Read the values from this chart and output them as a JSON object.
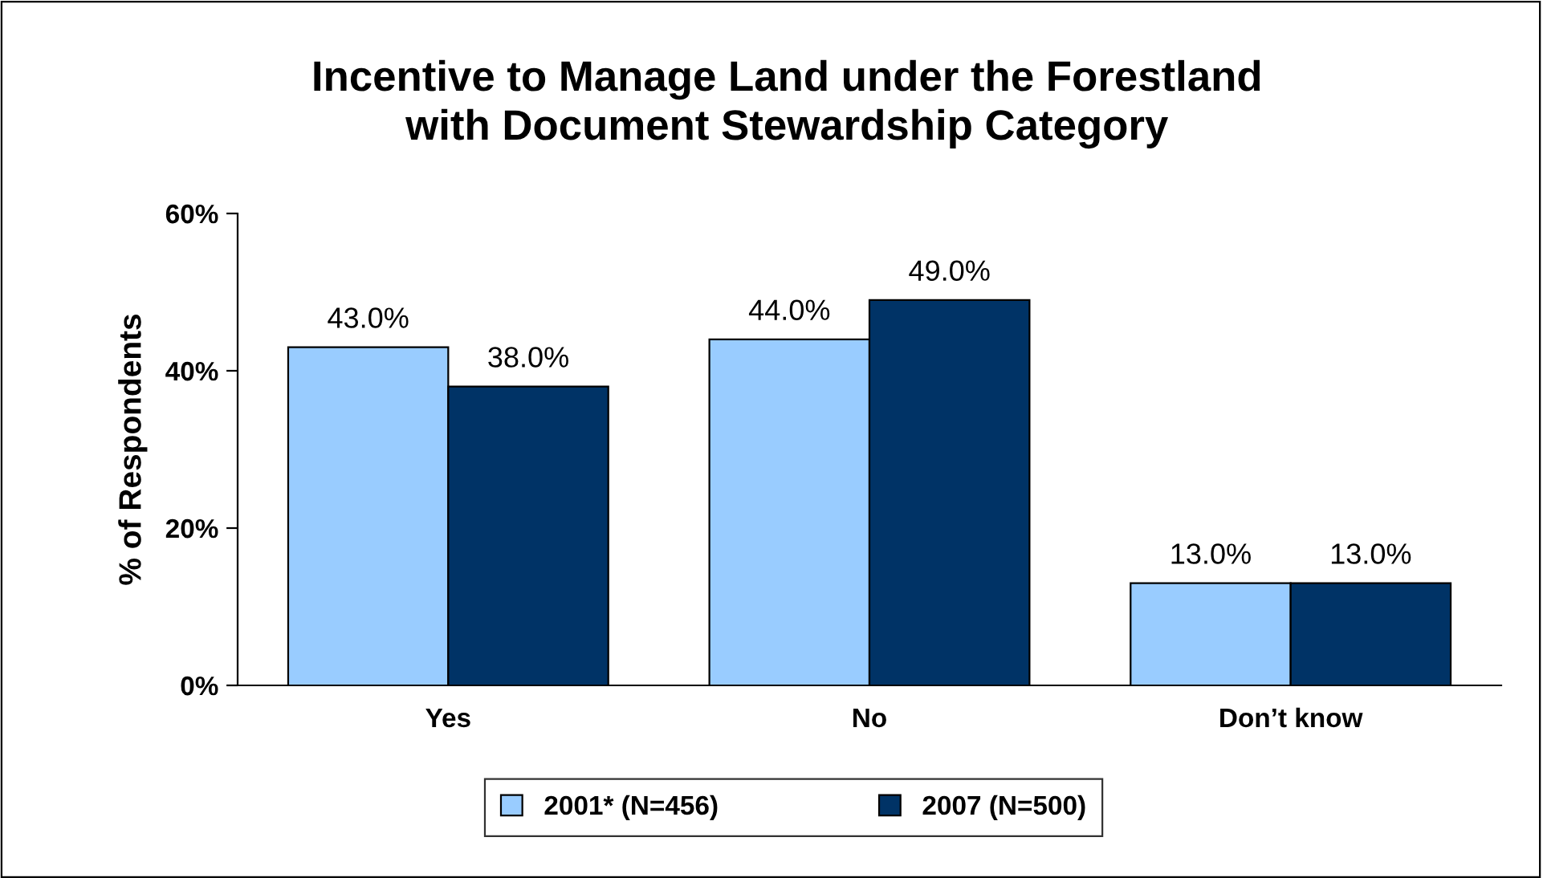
{
  "chart_data": {
    "type": "bar",
    "title": "Incentive to Manage Land under the Forestland\nwith Document Stewardship Category",
    "ylabel": "% of Respondents",
    "categories": [
      "Yes",
      "No",
      "Don’t know"
    ],
    "series": [
      {
        "name": "2001* (N=456)",
        "color": "#99ccff",
        "values": [
          43,
          44,
          13
        ],
        "value_labels": [
          "43.0%",
          "44.0%",
          "13.0%"
        ]
      },
      {
        "name": "2007 (N=500)",
        "color": "#003366",
        "values": [
          38,
          49,
          13
        ],
        "value_labels": [
          "38.0%",
          "49.0%",
          "13.0%"
        ]
      }
    ],
    "ylim": [
      0,
      60
    ],
    "yticks": [
      {
        "value": 0,
        "label": "0%"
      },
      {
        "value": 20,
        "label": "20%"
      },
      {
        "value": 40,
        "label": "40%"
      },
      {
        "value": 60,
        "label": "60%"
      }
    ],
    "grid": false,
    "legend": "bottom"
  }
}
